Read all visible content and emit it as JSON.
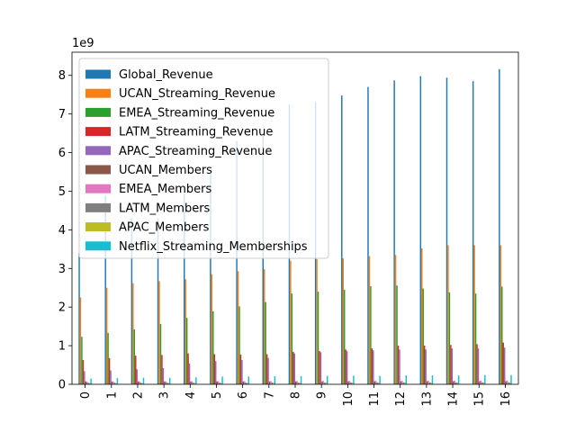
{
  "chart_data": {
    "type": "bar",
    "title": "",
    "xlabel": "",
    "ylabel": "",
    "y_exponent_label": "1e9",
    "ylim": [
      0,
      8.6
    ],
    "yticks": [
      0,
      1,
      2,
      3,
      4,
      5,
      6,
      7,
      8
    ],
    "categories": [
      "0",
      "1",
      "2",
      "3",
      "4",
      "5",
      "6",
      "7",
      "8",
      "9",
      "10",
      "11",
      "12",
      "13",
      "14",
      "15",
      "16"
    ],
    "legend_position": "upper-left",
    "series": [
      {
        "name": "Global_Revenue",
        "color": "#1f77b4",
        "values": [
          3.4,
          4.9,
          4.3,
          4.3,
          4.95,
          5.45,
          6.3,
          6.45,
          7.25,
          7.3,
          7.48,
          7.7,
          7.87,
          7.98,
          7.94,
          7.85,
          8.16
        ]
      },
      {
        "name": "UCAN_Streaming_Revenue",
        "color": "#ff7f0e",
        "values": [
          2.25,
          2.5,
          2.62,
          2.67,
          2.72,
          2.85,
          2.93,
          2.98,
          3.2,
          3.24,
          3.26,
          3.32,
          3.35,
          3.52,
          3.6,
          3.6,
          3.6
        ]
      },
      {
        "name": "EMEA_Streaming_Revenue",
        "color": "#2ca02c",
        "values": [
          1.23,
          1.33,
          1.42,
          1.56,
          1.72,
          1.89,
          2.02,
          2.13,
          2.35,
          2.4,
          2.45,
          2.54,
          2.56,
          2.48,
          2.38,
          2.35,
          2.53
        ]
      },
      {
        "name": "LATM_Streaming_Revenue",
        "color": "#d62728",
        "values": [
          0.63,
          0.68,
          0.74,
          0.76,
          0.8,
          0.78,
          0.77,
          0.78,
          0.84,
          0.86,
          0.9,
          0.93,
          1.0,
          1.0,
          1.02,
          1.04,
          1.08
        ]
      },
      {
        "name": "APAC_Streaming_Revenue",
        "color": "#9467bd",
        "values": [
          0.34,
          0.36,
          0.39,
          0.42,
          0.54,
          0.6,
          0.63,
          0.68,
          0.8,
          0.83,
          0.86,
          0.88,
          0.9,
          0.9,
          0.93,
          0.93,
          0.95
        ]
      },
      {
        "name": "UCAN_Members",
        "color": "#8c564b",
        "values": [
          0.074,
          0.074,
          0.074,
          0.073,
          0.074,
          0.074,
          0.074,
          0.075,
          0.076,
          0.076,
          0.076,
          0.077,
          0.078,
          0.078,
          0.079,
          0.08,
          0.081
        ]
      },
      {
        "name": "EMEA_Members",
        "color": "#e377c2",
        "values": [
          0.067,
          0.07,
          0.072,
          0.073,
          0.076,
          0.079,
          0.082,
          0.083,
          0.086,
          0.088,
          0.089,
          0.09,
          0.091,
          0.094,
          0.095,
          0.097,
          0.098
        ]
      },
      {
        "name": "LATM_Members",
        "color": "#7f7f7f",
        "values": [
          0.038,
          0.039,
          0.04,
          0.04,
          0.041,
          0.041,
          0.042,
          0.043,
          0.044,
          0.045,
          0.046,
          0.047,
          0.048,
          0.048,
          0.049,
          0.05,
          0.052
        ]
      },
      {
        "name": "APAC_Members",
        "color": "#bcbd22",
        "values": [
          0.03,
          0.031,
          0.032,
          0.033,
          0.035,
          0.036,
          0.037,
          0.038,
          0.039,
          0.04,
          0.041,
          0.042,
          0.043,
          0.044,
          0.045,
          0.046,
          0.047
        ]
      },
      {
        "name": "Netflix_Streaming_Memberships",
        "color": "#17becf",
        "values": [
          0.15,
          0.16,
          0.17,
          0.17,
          0.18,
          0.2,
          0.2,
          0.21,
          0.21,
          0.22,
          0.22,
          0.22,
          0.23,
          0.23,
          0.23,
          0.24,
          0.24
        ]
      }
    ]
  }
}
